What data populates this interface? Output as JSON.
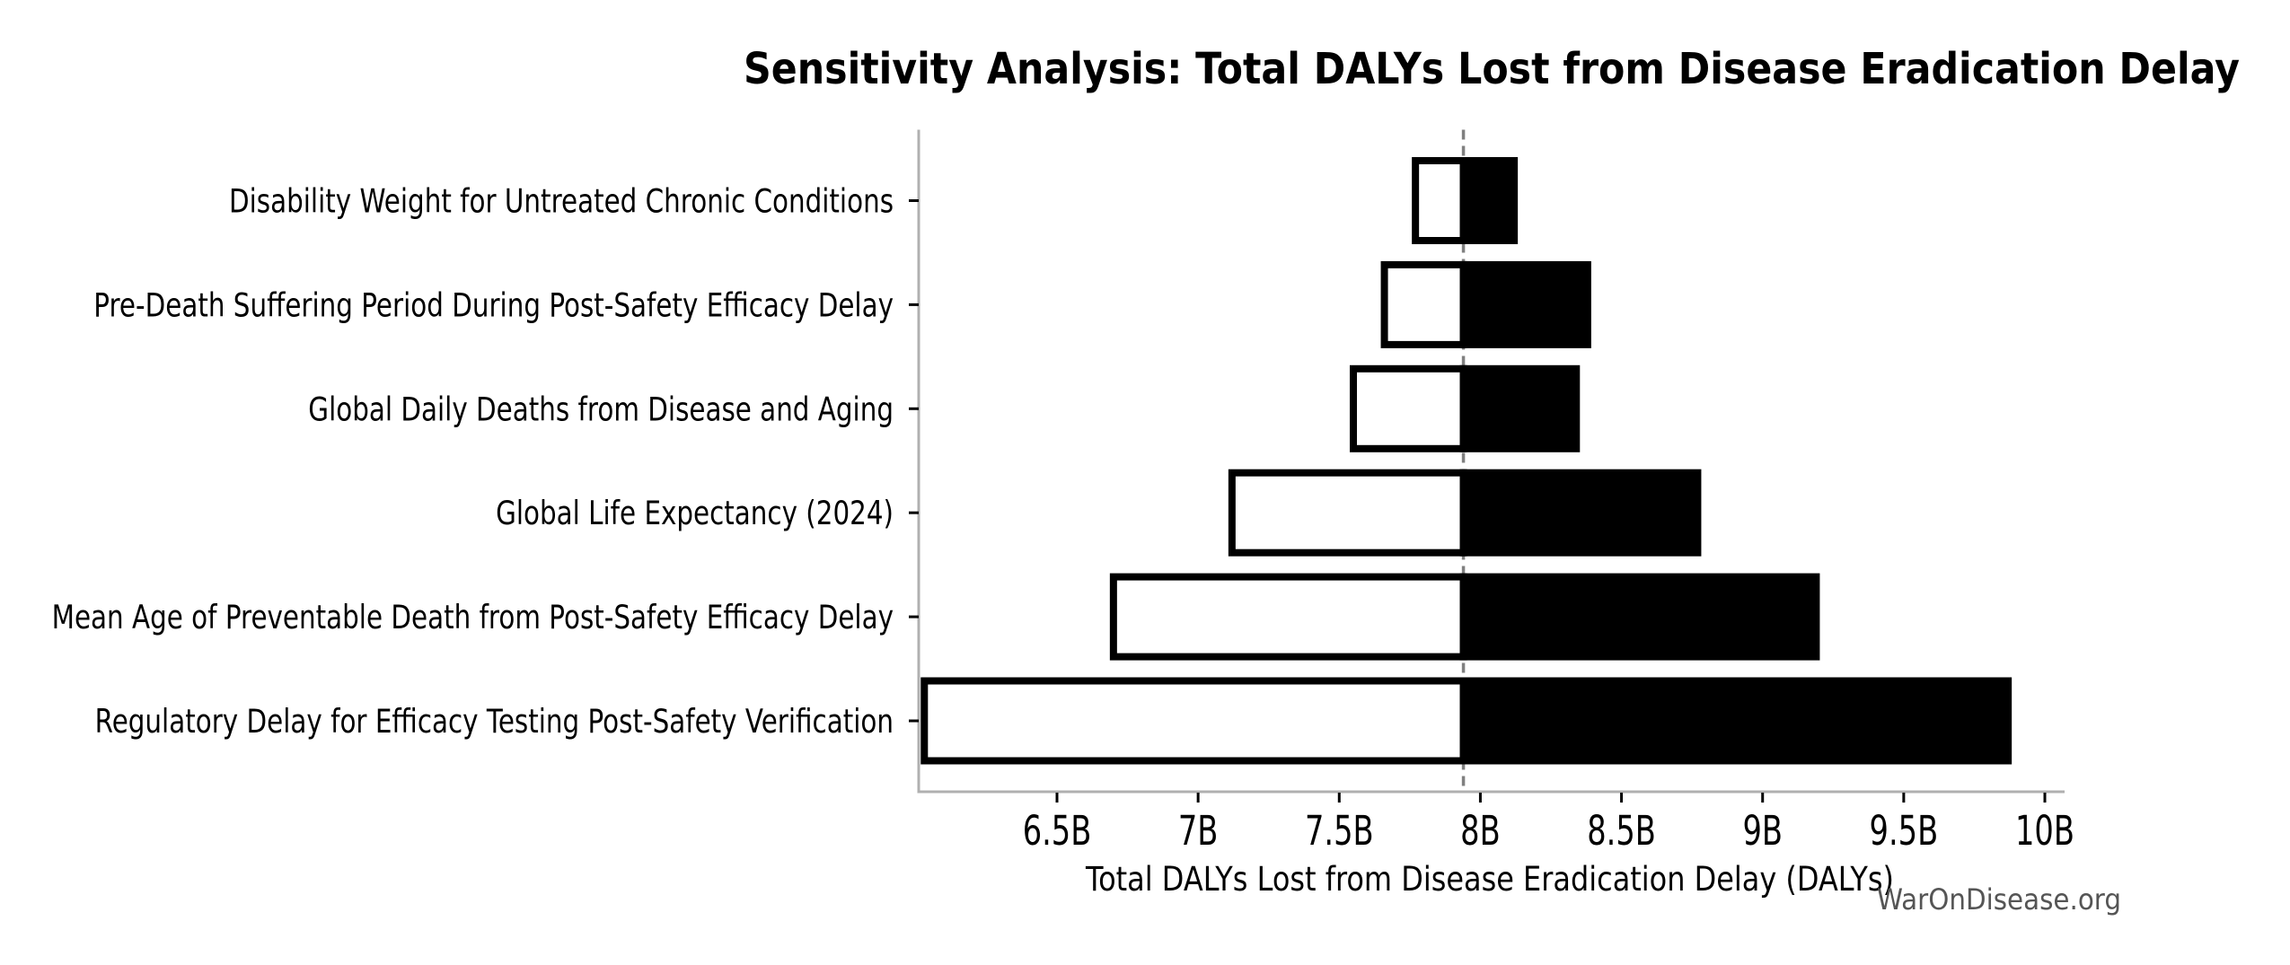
{
  "watermark": "WarOnDisease.org",
  "chart_data": {
    "type": "bar",
    "subtype": "tornado-sensitivity",
    "title": "Sensitivity Analysis: Total DALYs Lost from Disease Eradication Delay",
    "xlabel": "Total DALYs Lost from Disease Eradication Delay (DALYs)",
    "ylabel": "",
    "unit": "B (billions of DALYs)",
    "baseline": 7.94,
    "xlim": [
      6.01,
      10.07
    ],
    "xticks": [
      6.5,
      7.0,
      7.5,
      8.0,
      8.5,
      9.0,
      9.5,
      10.0
    ],
    "xtick_labels": [
      "6.5B",
      "7B",
      "7.5B",
      "8B",
      "8.5B",
      "9B",
      "9.5B",
      "10B"
    ],
    "grid": false,
    "legend": null,
    "parameters": [
      {
        "label": "Disability Weight for Untreated Chronic Conditions",
        "low": 7.77,
        "high": 8.12
      },
      {
        "label": "Pre-Death Suffering Period During Post-Safety Efficacy Delay",
        "low": 7.66,
        "high": 8.38
      },
      {
        "label": "Global Daily Deaths from Disease and Aging",
        "low": 7.55,
        "high": 8.34
      },
      {
        "label": "Global Life Expectancy (2024)",
        "low": 7.12,
        "high": 8.77
      },
      {
        "label": "Mean Age of Preventable Death from Post-Safety Efficacy Delay",
        "low": 6.7,
        "high": 9.19
      },
      {
        "label": "Regulatory Delay for Efficacy Testing Post-Safety Verification",
        "low": 6.03,
        "high": 9.87
      }
    ],
    "colors": {
      "low_fill": "#ffffff",
      "high_fill": "#000000",
      "bar_edge": "#000000",
      "baseline_line": "#808080",
      "spine": "#b0b0b0",
      "tick": "#000000",
      "text": "#000000",
      "watermark": "#555555"
    }
  }
}
